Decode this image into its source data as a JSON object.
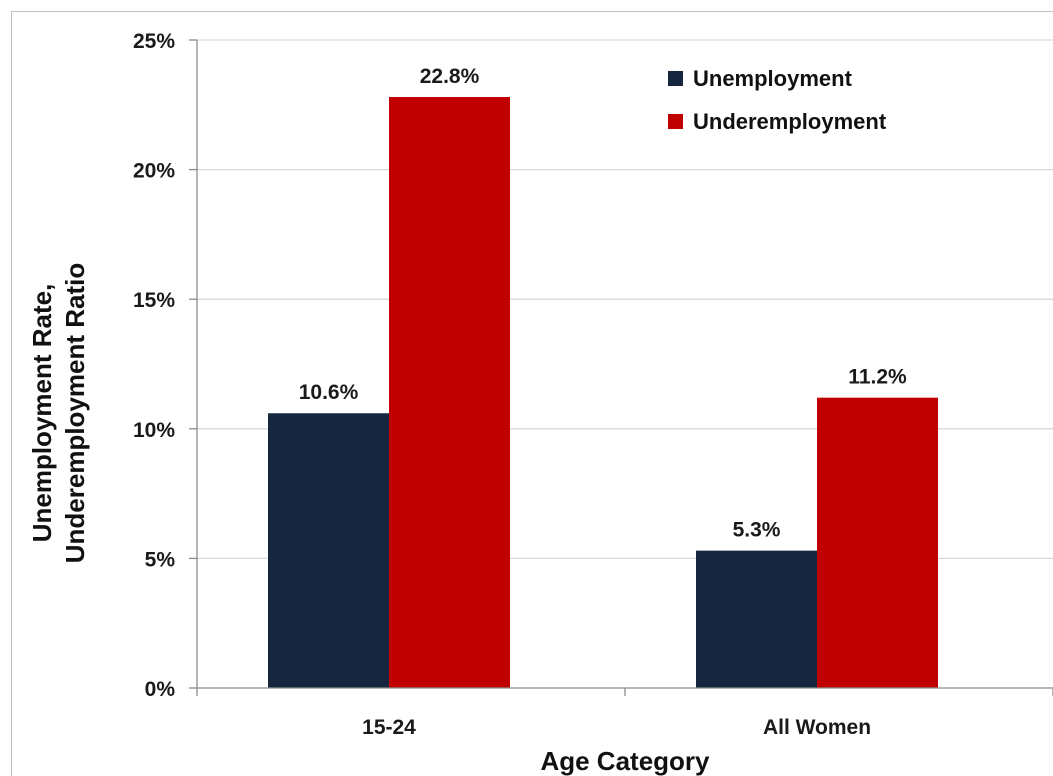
{
  "chart_data": {
    "type": "bar",
    "title": "",
    "xlabel": "Age Category",
    "ylabel_lines": [
      "Unemployment Rate,",
      "Underemployment Ratio"
    ],
    "categories": [
      "15-24",
      "All Women"
    ],
    "series": [
      {
        "name": "Unemployment",
        "color": "#16263f",
        "values": [
          10.6,
          5.3
        ],
        "labels": [
          "10.6%",
          "5.3%"
        ]
      },
      {
        "name": "Underemployment",
        "color": "#c00000",
        "values": [
          22.8,
          11.2
        ],
        "labels": [
          "22.8%",
          "11.2%"
        ]
      }
    ],
    "ylim": [
      0,
      25
    ],
    "yticks": [
      0,
      5,
      10,
      15,
      20,
      25
    ],
    "ytick_labels": [
      "0%",
      "5%",
      "10%",
      "15%",
      "20%",
      "25%"
    ],
    "grid": true,
    "legend_position": "top-right"
  }
}
